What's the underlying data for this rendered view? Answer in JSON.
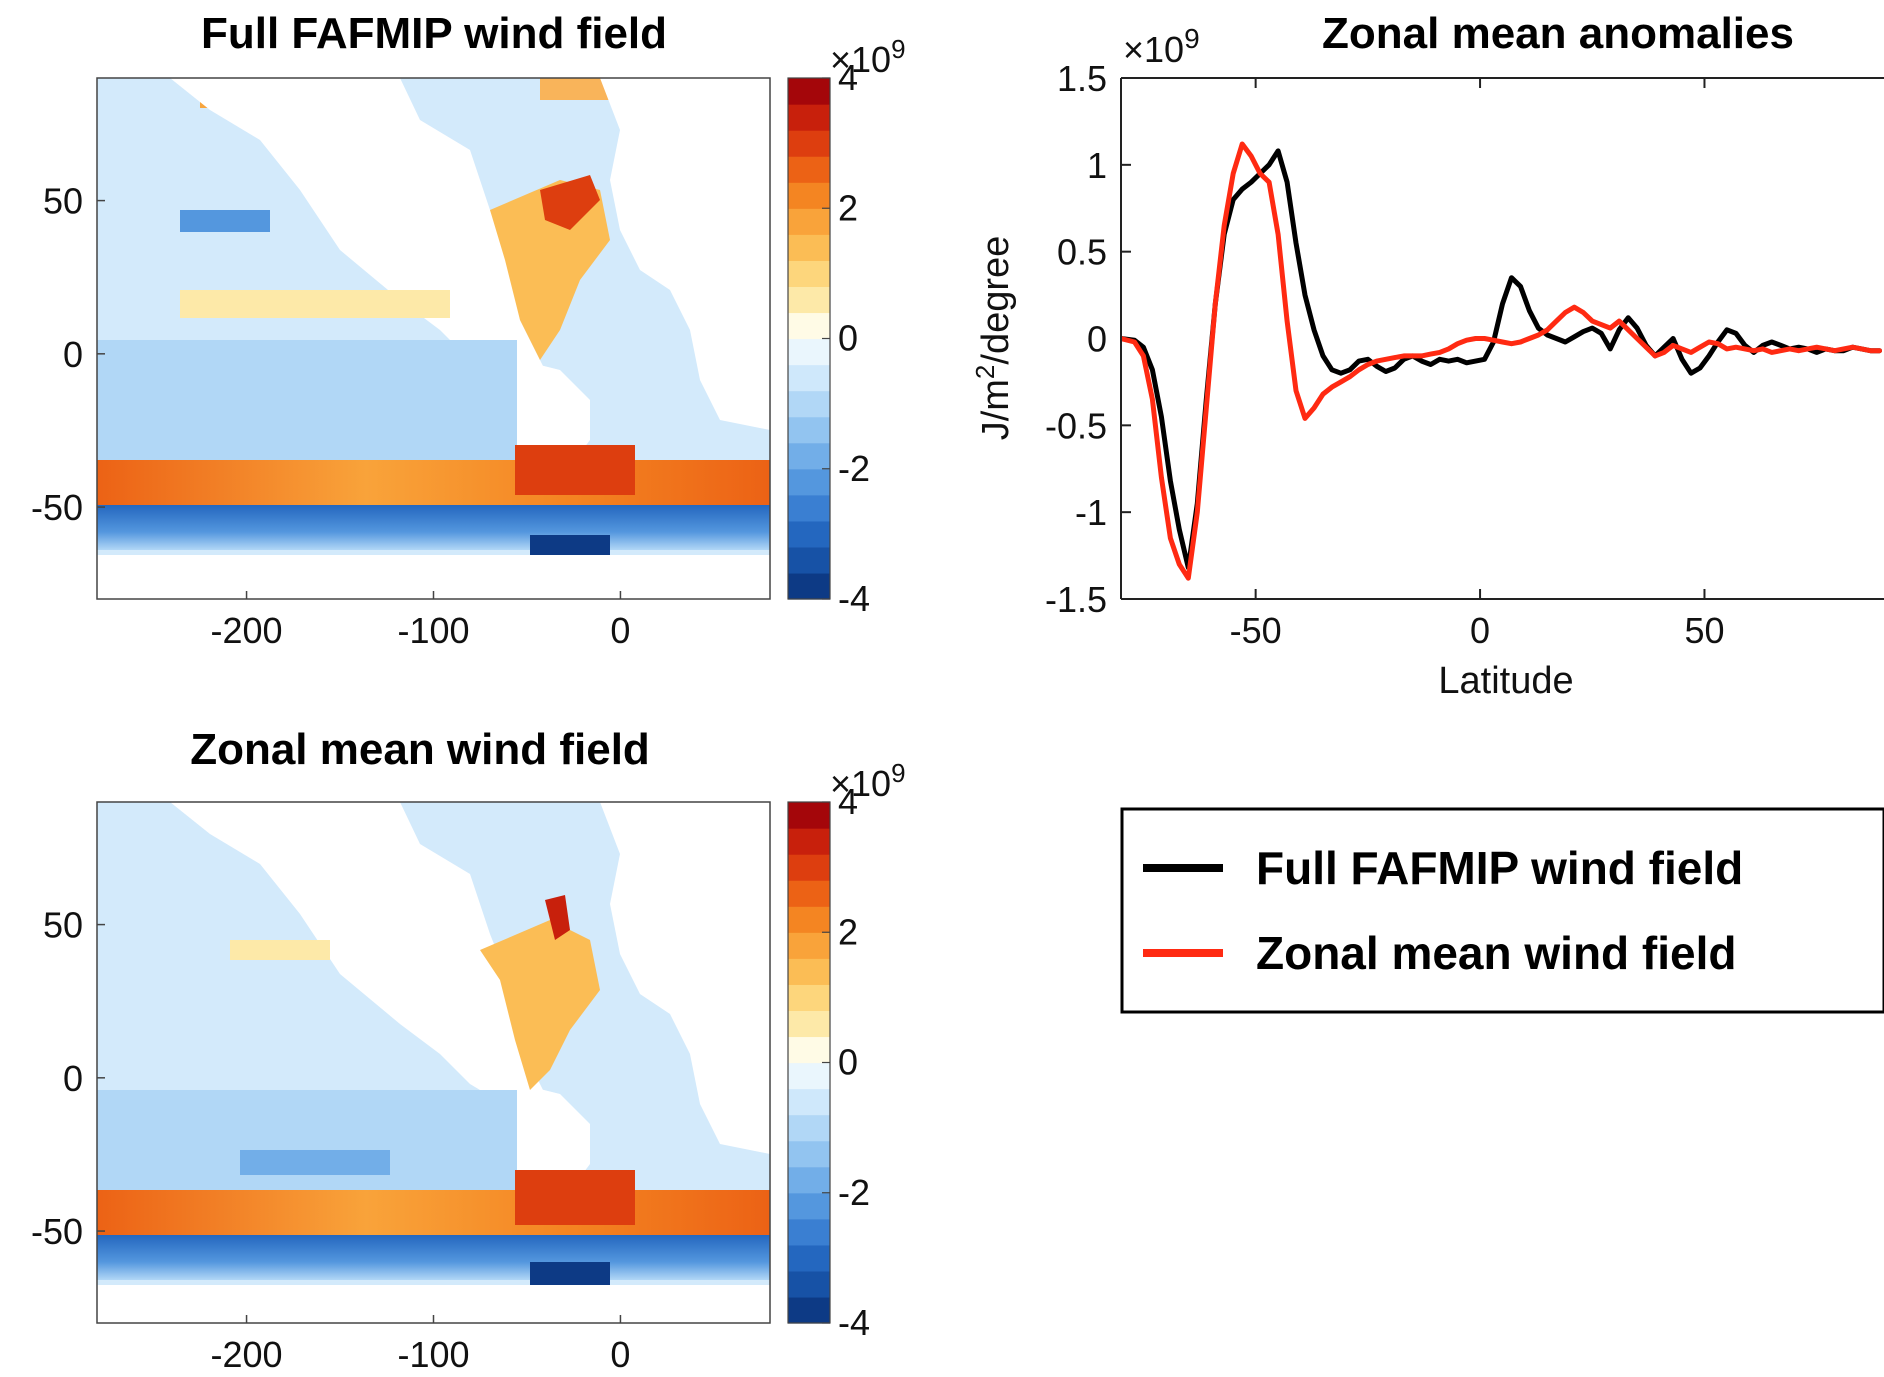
{
  "colors": {
    "black_series": "#000000",
    "red_series": "#ff2a12",
    "cmap": [
      "#0d3a85",
      "#1752a6",
      "#2467bf",
      "#3a7fd2",
      "#5497de",
      "#72aee8",
      "#92c4f0",
      "#b1d7f6",
      "#cfe8fb",
      "#eaf6fd",
      "#fffbe6",
      "#fde9a8",
      "#fdd67c",
      "#fbbd55",
      "#f9a33a",
      "#f48522",
      "#ec6215",
      "#dd3e0f",
      "#c8200c",
      "#a4060a"
    ]
  },
  "chart_data": [
    {
      "id": "map_full",
      "type": "heatmap",
      "title": "Full FAFMIP wind field",
      "xticks": [
        "-200",
        "-100",
        "0"
      ],
      "xtick_values": [
        -200,
        -100,
        0
      ],
      "yticks": [
        "50",
        "0",
        "-50"
      ],
      "ytick_values": [
        50,
        0,
        -50
      ],
      "xlim": [
        -280,
        80
      ],
      "ylim": [
        -80,
        90
      ],
      "colorbar": {
        "ticks": [
          "4",
          "2",
          "0",
          "-2",
          "-4"
        ],
        "tick_values": [
          4,
          2,
          0,
          -2,
          -4
        ],
        "scale": "×10",
        "scale_exp": "9",
        "clim": [
          -4,
          4
        ]
      }
    },
    {
      "id": "map_zonal",
      "type": "heatmap",
      "title": "Zonal mean wind field",
      "xticks": [
        "-200",
        "-100",
        "0"
      ],
      "xtick_values": [
        -200,
        -100,
        0
      ],
      "yticks": [
        "50",
        "0",
        "-50"
      ],
      "ytick_values": [
        50,
        0,
        -50
      ],
      "xlim": [
        -280,
        80
      ],
      "ylim": [
        -80,
        90
      ],
      "colorbar": {
        "ticks": [
          "4",
          "2",
          "0",
          "-2",
          "-4"
        ],
        "tick_values": [
          4,
          2,
          0,
          -2,
          -4
        ],
        "scale": "×10",
        "scale_exp": "9",
        "clim": [
          -4,
          4
        ]
      }
    },
    {
      "id": "zonal_anomalies",
      "type": "line",
      "title": "Zonal mean anomalies",
      "xlabel": "Latitude",
      "ylabel_main": "J/m",
      "ylabel_sup": "2",
      "ylabel_rest": "/degree",
      "y_scale": "×10",
      "y_scale_exp": "9",
      "xlim": [
        -80,
        90
      ],
      "ylim": [
        -1.5,
        1.5
      ],
      "xticks": [
        "-50",
        "0",
        "50"
      ],
      "xtick_values": [
        -50,
        0,
        50
      ],
      "yticks": [
        "1.5",
        "1",
        "0.5",
        "0",
        "-0.5",
        "-1",
        "-1.5"
      ],
      "ytick_values": [
        1.5,
        1,
        0.5,
        0,
        -0.5,
        -1,
        -1.5
      ],
      "legend_position": "lower-right",
      "series": [
        {
          "name": "Full FAFMIP wind field",
          "x": [
            -80,
            -77,
            -75,
            -73,
            -71,
            -69,
            -67,
            -65,
            -63,
            -61,
            -59,
            -57,
            -55,
            -53,
            -51,
            -49,
            -47,
            -45,
            -43,
            -41,
            -39,
            -37,
            -35,
            -33,
            -31,
            -29,
            -27,
            -25,
            -23,
            -21,
            -19,
            -17,
            -15,
            -13,
            -11,
            -9,
            -7,
            -5,
            -3,
            -1,
            1,
            3,
            5,
            7,
            9,
            11,
            13,
            15,
            17,
            19,
            21,
            23,
            25,
            27,
            29,
            31,
            33,
            35,
            37,
            39,
            41,
            43,
            45,
            47,
            49,
            51,
            53,
            55,
            57,
            59,
            61,
            63,
            65,
            67,
            69,
            71,
            73,
            75,
            77,
            79,
            81,
            83,
            85,
            87,
            89
          ],
          "y": [
            0.0,
            -0.01,
            -0.05,
            -0.18,
            -0.45,
            -0.82,
            -1.1,
            -1.32,
            -0.95,
            -0.35,
            0.2,
            0.6,
            0.8,
            0.86,
            0.9,
            0.95,
            1.0,
            1.08,
            0.9,
            0.55,
            0.25,
            0.05,
            -0.1,
            -0.18,
            -0.2,
            -0.18,
            -0.13,
            -0.12,
            -0.16,
            -0.19,
            -0.17,
            -0.12,
            -0.1,
            -0.13,
            -0.15,
            -0.12,
            -0.13,
            -0.12,
            -0.14,
            -0.13,
            -0.12,
            -0.02,
            0.2,
            0.35,
            0.3,
            0.16,
            0.06,
            0.02,
            0.0,
            -0.02,
            0.01,
            0.04,
            0.06,
            0.03,
            -0.06,
            0.05,
            0.12,
            0.06,
            -0.04,
            -0.1,
            -0.05,
            0.0,
            -0.12,
            -0.2,
            -0.17,
            -0.1,
            -0.02,
            0.05,
            0.03,
            -0.04,
            -0.08,
            -0.04,
            -0.02,
            -0.04,
            -0.06,
            -0.05,
            -0.06,
            -0.08,
            -0.06,
            -0.07,
            -0.07,
            -0.05,
            -0.06,
            -0.07,
            -0.07
          ]
        },
        {
          "name": "Zonal mean wind field",
          "x": [
            -80,
            -77,
            -75,
            -73,
            -71,
            -69,
            -67,
            -65,
            -63,
            -61,
            -59,
            -57,
            -55,
            -53,
            -51,
            -49,
            -47,
            -45,
            -43,
            -41,
            -39,
            -37,
            -35,
            -33,
            -31,
            -29,
            -27,
            -25,
            -23,
            -21,
            -19,
            -17,
            -15,
            -13,
            -11,
            -9,
            -7,
            -5,
            -3,
            -1,
            1,
            3,
            5,
            7,
            9,
            11,
            13,
            15,
            17,
            19,
            21,
            23,
            25,
            27,
            29,
            31,
            33,
            35,
            37,
            39,
            41,
            43,
            45,
            47,
            49,
            51,
            53,
            55,
            57,
            59,
            61,
            63,
            65,
            67,
            69,
            71,
            73,
            75,
            77,
            79,
            81,
            83,
            85,
            87,
            89
          ],
          "y": [
            0.0,
            -0.02,
            -0.1,
            -0.35,
            -0.8,
            -1.15,
            -1.3,
            -1.38,
            -1.0,
            -0.4,
            0.2,
            0.65,
            0.95,
            1.12,
            1.05,
            0.95,
            0.9,
            0.6,
            0.1,
            -0.3,
            -0.46,
            -0.4,
            -0.32,
            -0.28,
            -0.25,
            -0.22,
            -0.18,
            -0.15,
            -0.13,
            -0.12,
            -0.11,
            -0.1,
            -0.1,
            -0.1,
            -0.09,
            -0.08,
            -0.06,
            -0.03,
            -0.01,
            0.0,
            0.0,
            -0.01,
            -0.02,
            -0.03,
            -0.02,
            0.0,
            0.02,
            0.05,
            0.1,
            0.15,
            0.18,
            0.15,
            0.1,
            0.08,
            0.06,
            0.1,
            0.05,
            0.0,
            -0.05,
            -0.1,
            -0.08,
            -0.04,
            -0.06,
            -0.08,
            -0.05,
            -0.02,
            -0.03,
            -0.06,
            -0.05,
            -0.06,
            -0.07,
            -0.06,
            -0.08,
            -0.07,
            -0.06,
            -0.07,
            -0.06,
            -0.05,
            -0.06,
            -0.07,
            -0.06,
            -0.05,
            -0.06,
            -0.07,
            -0.07
          ]
        }
      ]
    }
  ]
}
